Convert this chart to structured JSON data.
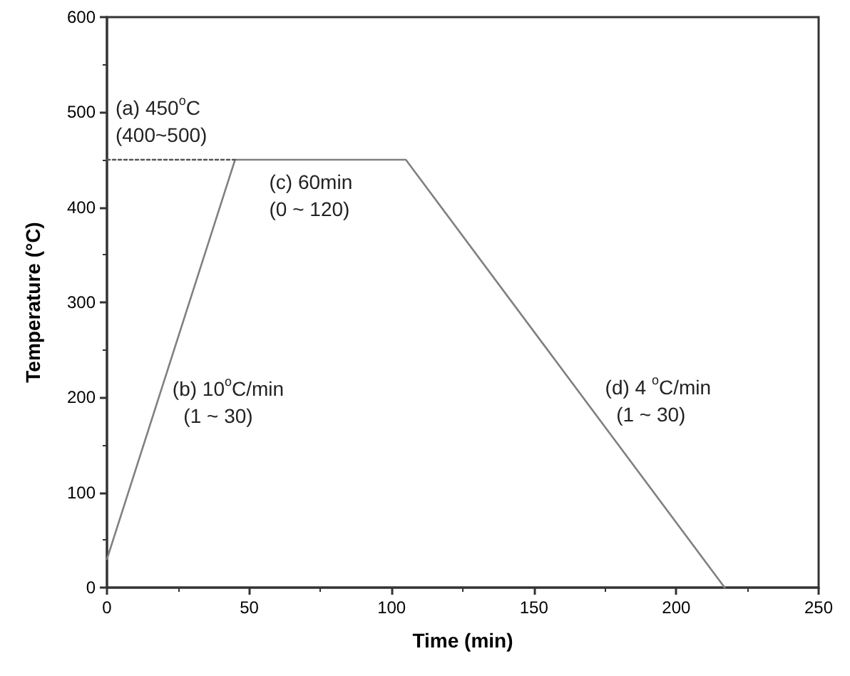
{
  "chart_data": {
    "type": "line",
    "xlabel": "Time (min)",
    "ylabel": "Temperature (°C)",
    "xlim": [
      0,
      250
    ],
    "xticks": [
      0,
      50,
      100,
      150,
      200,
      250
    ],
    "ylim": [
      0,
      600
    ],
    "yticks": [
      0,
      100,
      200,
      300,
      400,
      500,
      600
    ],
    "grid": false,
    "marker": "none",
    "series": [
      {
        "color": "#808080",
        "x": [
          0,
          45,
          105,
          217
        ],
        "values": [
          30,
          450,
          450,
          0
        ]
      },
      {
        "color": "#555555",
        "x": [
          0,
          45
        ],
        "values": [
          450,
          450
        ],
        "line_style": "dotted"
      }
    ],
    "annotations": [
      "(a) 450$^{o}$C\n(400~500)",
      "(b) 10$^{o}$C/min\n  (1 ~ 30)",
      "(c) 60min\n(0 ~ 120)",
      "(d) 4 $^{o}$C/min\n  (1 ~ 30)"
    ]
  }
}
